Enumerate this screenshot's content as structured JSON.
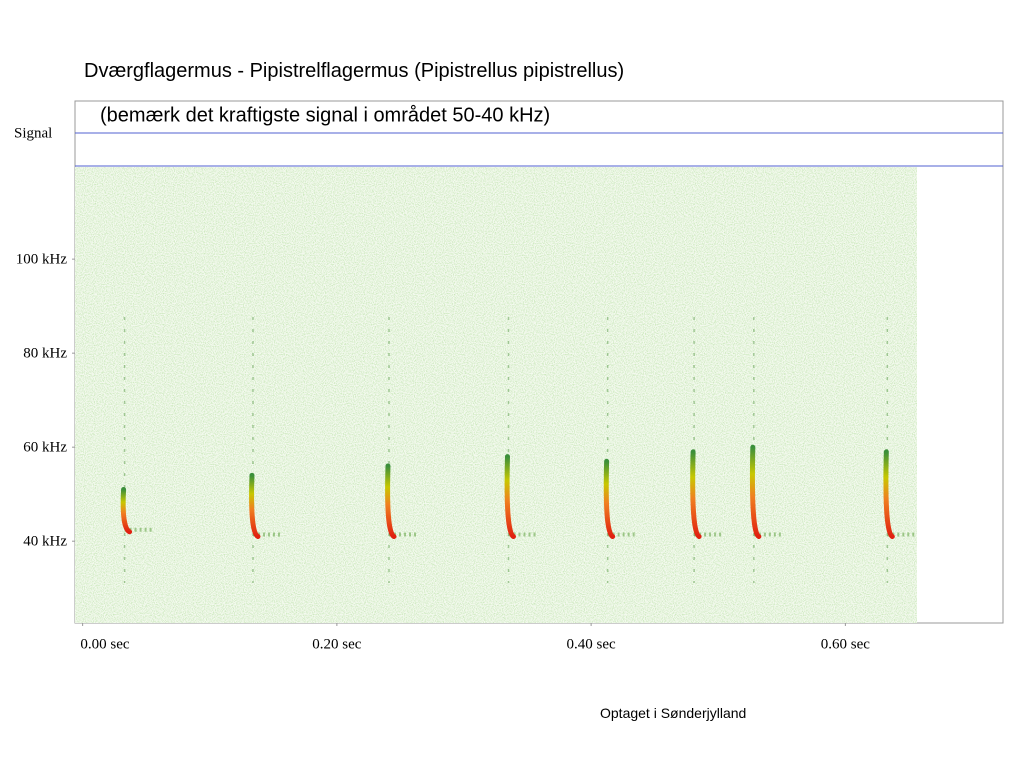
{
  "chart_data": {
    "type": "spectrogram",
    "title": "Dværgflagermus - Pipistrelflagermus (Pipistrellus pipistrellus)",
    "subtitle": "(bemærk det kraftigste signal i området 50-40 kHz)",
    "signal_label": "Signal",
    "xlim": [
      -0.006,
      0.724
    ],
    "ylim": [
      22.6,
      119.6
    ],
    "xticks": [
      {
        "value": 0,
        "label": "0.00 sec"
      },
      {
        "value": 0.2,
        "label": "0.20 sec"
      },
      {
        "value": 0.4,
        "label": "0.40 sec"
      },
      {
        "value": 0.6,
        "label": "0.60 sec"
      }
    ],
    "yticks": [
      {
        "value": 100,
        "label": "100 kHz"
      },
      {
        "value": 80,
        "label": "80 kHz"
      },
      {
        "value": 60,
        "label": "60 kHz"
      },
      {
        "value": 40,
        "label": "40 kHz"
      }
    ],
    "x": [
      0.033,
      0.134,
      0.241,
      0.335,
      0.413,
      0.481,
      0.528,
      0.633
    ],
    "values": [
      51,
      54,
      56,
      58,
      57,
      59,
      60,
      59
    ],
    "low": [
      42,
      41,
      41,
      41,
      41,
      41,
      41,
      41
    ]
  },
  "caption": "Optaget i Sønderjylland"
}
